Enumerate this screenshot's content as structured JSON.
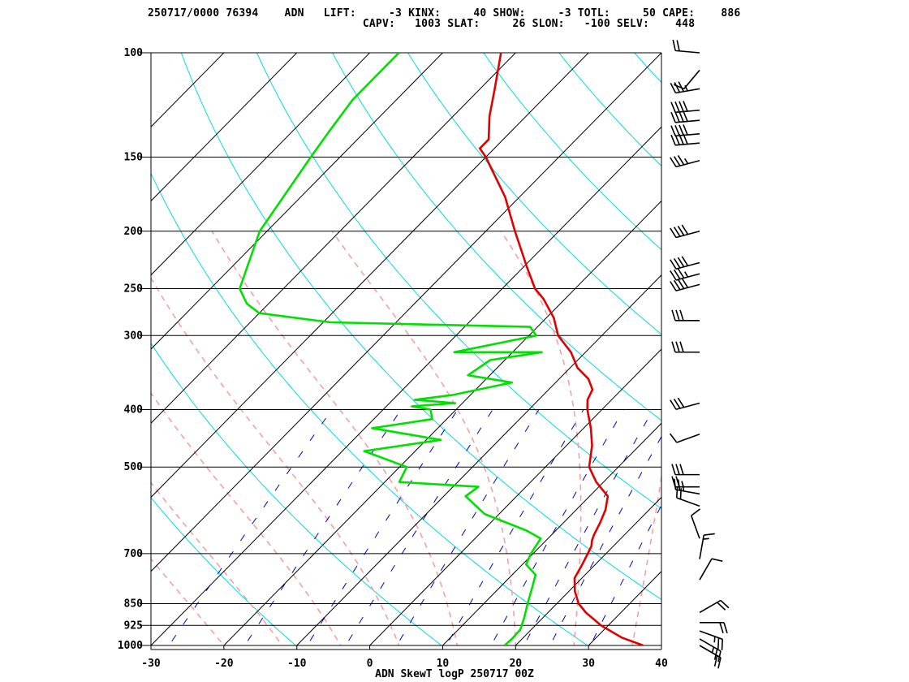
{
  "header": {
    "line1": "250717/0000 76394    ADN   LIFT:     -3 KINX:     40 SHOW:     -3 TOTL:     50 CAPE:    886",
    "line2": "                                 CAPV:   1003 SLAT:     26 SLON:   -100 SELV:    448"
  },
  "colors": {
    "temperature": "#e00000",
    "dewpoint": "#00e000",
    "isotherm": "#000000",
    "dry_adiabat": "#00dddd",
    "moist_adiabat": "#f4a0a8",
    "mixing_ratio": "#0000cc",
    "wind_barb": "#000000"
  },
  "chart_data": {
    "type": "line",
    "title": "ADN SkewT logP 250717 00Z",
    "xlabel": "",
    "ylabel": "",
    "x_range_at_1000hPa": [
      -30,
      40
    ],
    "y_range_hPa": [
      1000,
      100
    ],
    "y_scale": "log (reversed)",
    "isotherm_skew_deg_per_decade": 80,
    "grid": true,
    "pressure_ticks": [
      100,
      150,
      200,
      250,
      300,
      400,
      500,
      700,
      850,
      925,
      1000
    ],
    "temperature_ticks": [
      -30,
      -20,
      -10,
      0,
      10,
      20,
      30,
      40
    ],
    "series": [
      {
        "key": "temperature",
        "points": [
          [
            1000,
            37.5
          ],
          [
            970,
            33.5
          ],
          [
            925,
            29
          ],
          [
            880,
            25.2
          ],
          [
            850,
            23
          ],
          [
            810,
            20.8
          ],
          [
            770,
            19
          ],
          [
            730,
            18.2
          ],
          [
            700,
            17.5
          ],
          [
            680,
            17
          ],
          [
            665,
            16.3
          ],
          [
            650,
            15.8
          ],
          [
            620,
            15
          ],
          [
            590,
            14
          ],
          [
            560,
            12.5
          ],
          [
            530,
            9
          ],
          [
            500,
            6
          ],
          [
            460,
            3.5
          ],
          [
            430,
            1
          ],
          [
            400,
            -2
          ],
          [
            385,
            -3.3
          ],
          [
            370,
            -4
          ],
          [
            355,
            -6
          ],
          [
            340,
            -9
          ],
          [
            320,
            -12
          ],
          [
            300,
            -16
          ],
          [
            280,
            -19
          ],
          [
            260,
            -23
          ],
          [
            250,
            -25.5
          ],
          [
            230,
            -29.5
          ],
          [
            200,
            -36
          ],
          [
            175,
            -42
          ],
          [
            150,
            -50
          ],
          [
            145,
            -52
          ],
          [
            140,
            -52
          ],
          [
            128,
            -55
          ],
          [
            115,
            -58
          ],
          [
            100,
            -62
          ]
        ]
      },
      {
        "key": "dewpoint",
        "points": [
          [
            1000,
            18.5
          ],
          [
            975,
            18.6
          ],
          [
            940,
            18.5
          ],
          [
            900,
            17.5
          ],
          [
            850,
            16
          ],
          [
            800,
            14.5
          ],
          [
            760,
            13.2
          ],
          [
            730,
            10.5
          ],
          [
            700,
            9.7
          ],
          [
            660,
            9
          ],
          [
            640,
            6
          ],
          [
            600,
            -2
          ],
          [
            560,
            -7
          ],
          [
            540,
            -6.5
          ],
          [
            530,
            -18
          ],
          [
            500,
            -19
          ],
          [
            470,
            -27
          ],
          [
            450,
            -18
          ],
          [
            430,
            -29
          ],
          [
            415,
            -22
          ],
          [
            400,
            -23.5
          ],
          [
            395,
            -26.5
          ],
          [
            390,
            -21
          ],
          [
            385,
            -27
          ],
          [
            378,
            -22.5
          ],
          [
            360,
            -16
          ],
          [
            350,
            -23
          ],
          [
            330,
            -22
          ],
          [
            320,
            -16
          ],
          [
            320,
            -28
          ],
          [
            300,
            -19
          ],
          [
            290,
            -21
          ],
          [
            285,
            -49
          ],
          [
            275,
            -60
          ],
          [
            265,
            -63
          ],
          [
            250,
            -66
          ],
          [
            200,
            -71
          ],
          [
            150,
            -74
          ],
          [
            135,
            -75
          ],
          [
            120,
            -76
          ],
          [
            100,
            -76
          ]
        ]
      }
    ],
    "wind_barbs": [
      {
        "p": 100,
        "dir": 275,
        "kt": 20
      },
      {
        "p": 107,
        "dir": 220,
        "kt": 10
      },
      {
        "p": 115,
        "dir": 260,
        "kt": 35
      },
      {
        "p": 125,
        "dir": 265,
        "kt": 40
      },
      {
        "p": 130,
        "dir": 265,
        "kt": 40
      },
      {
        "p": 137,
        "dir": 265,
        "kt": 40
      },
      {
        "p": 142,
        "dir": 265,
        "kt": 40
      },
      {
        "p": 152,
        "dir": 255,
        "kt": 35
      },
      {
        "p": 200,
        "dir": 255,
        "kt": 40
      },
      {
        "p": 226,
        "dir": 255,
        "kt": 40
      },
      {
        "p": 236,
        "dir": 255,
        "kt": 35
      },
      {
        "p": 246,
        "dir": 255,
        "kt": 40
      },
      {
        "p": 283,
        "dir": 270,
        "kt": 30
      },
      {
        "p": 320,
        "dir": 270,
        "kt": 30
      },
      {
        "p": 390,
        "dir": 255,
        "kt": 30
      },
      {
        "p": 440,
        "dir": 250,
        "kt": 10
      },
      {
        "p": 515,
        "dir": 270,
        "kt": 30
      },
      {
        "p": 540,
        "dir": 270,
        "kt": 25
      },
      {
        "p": 555,
        "dir": 280,
        "kt": 25
      },
      {
        "p": 582,
        "dir": 290,
        "kt": 20
      },
      {
        "p": 660,
        "dir": 340,
        "kt": 10
      },
      {
        "p": 715,
        "dir": 10,
        "kt": 15
      },
      {
        "p": 775,
        "dir": 30,
        "kt": 10
      },
      {
        "p": 880,
        "dir": 60,
        "kt": 20
      },
      {
        "p": 915,
        "dir": 90,
        "kt": 20
      },
      {
        "p": 945,
        "dir": 110,
        "kt": 25
      },
      {
        "p": 975,
        "dir": 120,
        "kt": 25
      },
      {
        "p": 1000,
        "dir": 120,
        "kt": 20
      }
    ]
  }
}
